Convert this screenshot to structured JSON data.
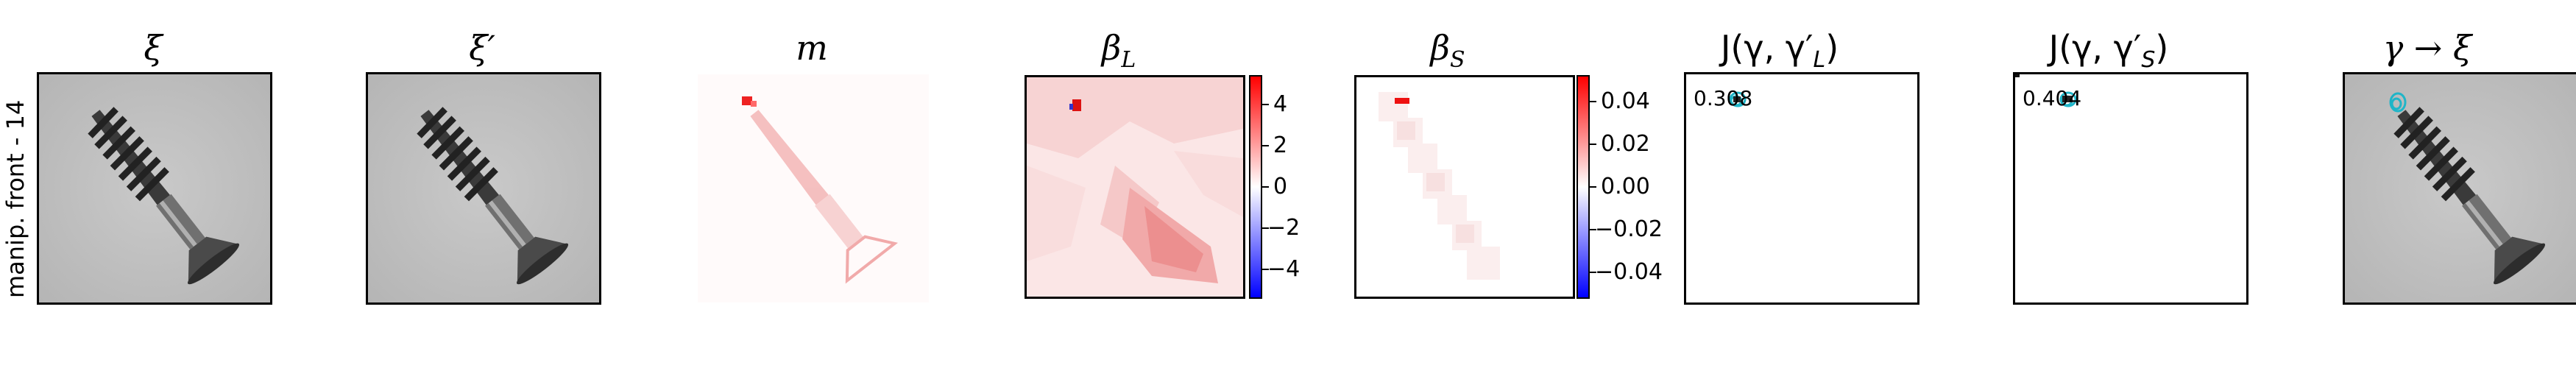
{
  "figure": {
    "row_label": "manip. front - 14",
    "panels": [
      {
        "id": "xi",
        "title": "ξ"
      },
      {
        "id": "xi-prime",
        "title": "ξ′"
      },
      {
        "id": "m",
        "title": "m"
      },
      {
        "id": "beta-l",
        "title": "βL",
        "title_main": "β",
        "title_sub": "L"
      },
      {
        "id": "beta-s",
        "title": "βS",
        "title_main": "β",
        "title_sub": "S"
      },
      {
        "id": "j-l",
        "title": "J(γ, γ′L)",
        "title_main": "J(γ, γ′",
        "title_sub": "L",
        "title_end": ")"
      },
      {
        "id": "j-s",
        "title": "J(γ, γ′S)",
        "title_main": "J(γ, γ′",
        "title_sub": "S",
        "title_end": ")"
      },
      {
        "id": "gamma-xi",
        "title": "γ → ξ"
      }
    ],
    "colorbar_beta_l": {
      "ticks": [
        "4",
        "2",
        "0",
        "−2",
        "−4"
      ]
    },
    "colorbar_beta_s": {
      "ticks": [
        "0.04",
        "0.02",
        "0.00",
        "−0.02",
        "−0.04"
      ]
    },
    "score_l": "0.308",
    "score_s": "0.404",
    "colors": {
      "positive": "#ff0000",
      "negative": "#0000ff",
      "marker": "#1fb5c8"
    }
  }
}
